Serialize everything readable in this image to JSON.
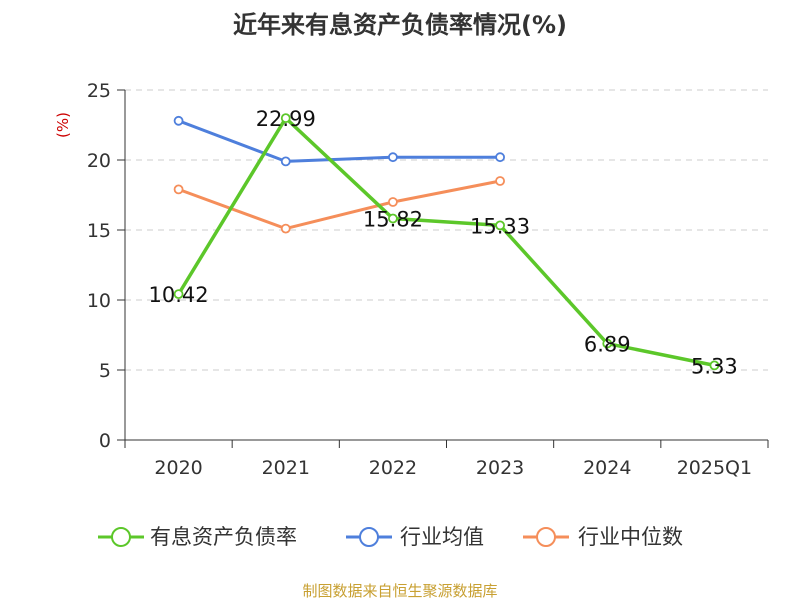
{
  "chart_data": {
    "type": "line",
    "title": "近年来有息资产负债率情况(%)",
    "ylabel": "(%)",
    "categories": [
      "2020",
      "2021",
      "2022",
      "2023",
      "2024",
      "2025Q1"
    ],
    "ylim": [
      0,
      25
    ],
    "yticks": [
      0,
      5,
      10,
      15,
      20,
      25
    ],
    "grid": true,
    "legend_position": "bottom",
    "series": [
      {
        "name": "有息资产负债率",
        "color": "#5cc72a",
        "values": [
          10.42,
          22.99,
          15.82,
          15.33,
          6.89,
          5.33
        ],
        "labels": [
          "10.42",
          "22.99",
          "15.82",
          "15.33",
          "6.89",
          "5.33"
        ]
      },
      {
        "name": "行业均值",
        "color": "#4e7fdc",
        "values": [
          22.8,
          19.9,
          20.2,
          20.2,
          null,
          null
        ]
      },
      {
        "name": "行业中位数",
        "color": "#f58e5a",
        "values": [
          17.9,
          15.1,
          17.0,
          18.5,
          null,
          null
        ]
      }
    ]
  },
  "colors": {
    "title": "#333333",
    "unit": "#cc0000",
    "source": "#c8a032",
    "grid": "#cccccc",
    "axis": "#333333"
  },
  "source": "制图数据来自恒生聚源数据库"
}
